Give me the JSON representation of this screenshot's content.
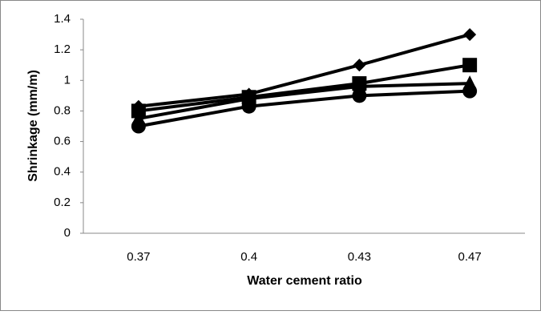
{
  "chart_data": {
    "type": "line",
    "x_label": "Water cement ratio",
    "y_label": "Shrinkage (mm/m)",
    "categories": [
      "0.37",
      "0.4",
      "0.43",
      "0.47"
    ],
    "series": [
      {
        "color": "#000000",
        "marker": "diamond",
        "values": [
          0.83,
          0.91,
          1.1,
          1.3
        ]
      },
      {
        "color": "#000000",
        "marker": "square",
        "values": [
          0.8,
          0.89,
          0.98,
          1.1
        ]
      },
      {
        "color": "#000000",
        "marker": "triangle",
        "values": [
          0.75,
          0.88,
          0.96,
          0.98
        ]
      },
      {
        "color": "#000000",
        "marker": "circle",
        "values": [
          0.7,
          0.83,
          0.9,
          0.93
        ]
      }
    ],
    "ylim": [
      0,
      1.4
    ],
    "yticks": [
      0,
      0.2,
      0.4,
      0.6,
      0.8,
      1,
      1.2,
      1.4
    ],
    "grid": false
  }
}
